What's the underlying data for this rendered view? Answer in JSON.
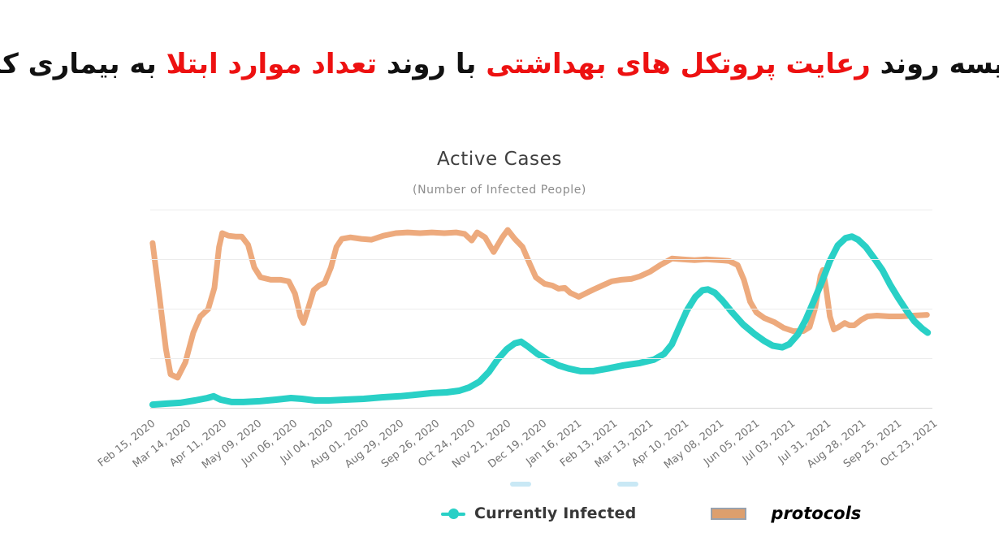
{
  "main_title": {
    "segments": [
      {
        "text": "مقایسه روند ",
        "color": "#111111"
      },
      {
        "text": "رعایت پروتکل های بهداشتی ",
        "color": "#ed1111"
      },
      {
        "text": "با روند ",
        "color": "#111111"
      },
      {
        "text": "تعداد موارد ابتلا ",
        "color": "#ed1111"
      },
      {
        "text": "به بیماری کرونا",
        "color": "#111111"
      }
    ]
  },
  "chart_data": {
    "type": "line",
    "title": "Active Cases",
    "subtitle": "(Number of Infected People)",
    "x_tick_labels": [
      "Feb 15, 2020",
      "Mar 14, 2020",
      "Apr 11, 2020",
      "May 09, 2020",
      "Jun 06, 2020",
      "Jul 04, 2020",
      "Aug 01, 2020",
      "Aug 29, 2020",
      "Sep 26, 2020",
      "Oct 24, 2020",
      "Nov 21, 2020",
      "Dec 19, 2020",
      "Jan 16, 2021",
      "Feb 13, 2021",
      "Mar 13, 2021",
      "Apr 10, 2021",
      "May 08, 2021",
      "Jun 05, 2021",
      "Jul 03, 2021",
      "Jul 31, 2021",
      "Aug 28, 2021",
      "Sep 25, 2021",
      "Oct 23, 2021"
    ],
    "y_axis": {
      "labels_visible": false,
      "note": "no numeric y labels shown; values below are relative 0-100 of plot height",
      "gridline_count": 5
    },
    "grid": {
      "horizontal": true,
      "vertical": false,
      "gridline_color": "#ececec",
      "axis_line_color": "#d6d6d6"
    },
    "legend_position": "bottom",
    "legend": [
      {
        "label": "Currently Infected",
        "marker": "line-with-dot",
        "color": "#29d0c6",
        "label_color": "#383838"
      },
      {
        "label": "protocols",
        "marker": "bordered-rect",
        "color": "#dd9f6d",
        "border_color": "#99a1ac",
        "label_color": "#000000"
      }
    ],
    "series": [
      {
        "name": "protocols",
        "color": "#edaa7d",
        "stroke_width": 7,
        "points": [
          [
            0.3,
            83.1
          ],
          [
            1.1,
            58.4
          ],
          [
            2.0,
            29.6
          ],
          [
            2.6,
            16.9
          ],
          [
            3.5,
            15.2
          ],
          [
            4.5,
            23.0
          ],
          [
            5.5,
            37.9
          ],
          [
            6.4,
            46.1
          ],
          [
            7.4,
            49.8
          ],
          [
            8.2,
            60.5
          ],
          [
            8.8,
            81.1
          ],
          [
            9.2,
            88.1
          ],
          [
            10.0,
            86.8
          ],
          [
            10.9,
            86.4
          ],
          [
            11.7,
            86.4
          ],
          [
            12.5,
            82.3
          ],
          [
            13.3,
            70.8
          ],
          [
            14.1,
            65.8
          ],
          [
            15.4,
            64.6
          ],
          [
            16.7,
            64.6
          ],
          [
            17.7,
            63.8
          ],
          [
            18.5,
            57.6
          ],
          [
            19.2,
            46.1
          ],
          [
            19.6,
            42.8
          ],
          [
            20.2,
            50.2
          ],
          [
            20.9,
            59.3
          ],
          [
            21.6,
            61.7
          ],
          [
            22.3,
            63.0
          ],
          [
            23.1,
            70.8
          ],
          [
            23.8,
            81.1
          ],
          [
            24.5,
            85.2
          ],
          [
            25.6,
            86.0
          ],
          [
            27.0,
            85.2
          ],
          [
            28.3,
            84.8
          ],
          [
            29.8,
            86.8
          ],
          [
            31.4,
            88.1
          ],
          [
            32.9,
            88.5
          ],
          [
            34.5,
            88.1
          ],
          [
            36.0,
            88.5
          ],
          [
            37.6,
            88.1
          ],
          [
            39.1,
            88.5
          ],
          [
            40.2,
            87.7
          ],
          [
            41.1,
            84.4
          ],
          [
            41.8,
            88.5
          ],
          [
            42.8,
            86.0
          ],
          [
            43.9,
            78.6
          ],
          [
            45.0,
            86.0
          ],
          [
            45.7,
            89.7
          ],
          [
            46.6,
            85.2
          ],
          [
            47.6,
            81.1
          ],
          [
            48.5,
            72.8
          ],
          [
            49.3,
            65.8
          ],
          [
            50.4,
            62.6
          ],
          [
            51.4,
            61.7
          ],
          [
            52.2,
            60.1
          ],
          [
            53.0,
            60.5
          ],
          [
            53.7,
            58.0
          ],
          [
            54.8,
            56.0
          ],
          [
            55.8,
            58.0
          ],
          [
            56.7,
            59.7
          ],
          [
            57.8,
            61.7
          ],
          [
            59.0,
            63.8
          ],
          [
            60.2,
            64.6
          ],
          [
            61.5,
            65.0
          ],
          [
            62.6,
            66.3
          ],
          [
            63.9,
            68.7
          ],
          [
            65.2,
            72.0
          ],
          [
            66.7,
            75.3
          ],
          [
            68.0,
            74.9
          ],
          [
            69.6,
            74.5
          ],
          [
            71.1,
            74.9
          ],
          [
            72.7,
            74.5
          ],
          [
            74.0,
            74.1
          ],
          [
            75.1,
            72.0
          ],
          [
            75.9,
            64.6
          ],
          [
            76.7,
            53.5
          ],
          [
            77.5,
            48.1
          ],
          [
            78.5,
            45.3
          ],
          [
            79.8,
            43.2
          ],
          [
            81.0,
            40.3
          ],
          [
            82.2,
            38.7
          ],
          [
            83.5,
            38.7
          ],
          [
            84.3,
            40.7
          ],
          [
            85.0,
            50.2
          ],
          [
            85.7,
            66.7
          ],
          [
            86.0,
            69.5
          ],
          [
            86.4,
            60.5
          ],
          [
            86.9,
            46.1
          ],
          [
            87.4,
            39.5
          ],
          [
            88.0,
            40.7
          ],
          [
            88.8,
            42.8
          ],
          [
            89.4,
            41.6
          ],
          [
            90.0,
            41.6
          ],
          [
            90.9,
            44.4
          ],
          [
            91.7,
            46.1
          ],
          [
            92.9,
            46.5
          ],
          [
            94.5,
            46.1
          ],
          [
            96.0,
            46.1
          ],
          [
            97.6,
            46.5
          ],
          [
            99.3,
            46.9
          ]
        ]
      },
      {
        "name": "Currently Infected",
        "color": "#29d0c6",
        "stroke_width": 8,
        "points": [
          [
            0.3,
            1.6
          ],
          [
            2.1,
            2.1
          ],
          [
            3.8,
            2.5
          ],
          [
            5.7,
            3.7
          ],
          [
            7.3,
            4.9
          ],
          [
            8.1,
            5.8
          ],
          [
            9.0,
            4.1
          ],
          [
            10.4,
            2.9
          ],
          [
            11.9,
            2.9
          ],
          [
            14.0,
            3.3
          ],
          [
            16.1,
            4.1
          ],
          [
            18.0,
            4.9
          ],
          [
            19.4,
            4.5
          ],
          [
            21.1,
            3.7
          ],
          [
            22.8,
            3.7
          ],
          [
            24.9,
            4.1
          ],
          [
            27.3,
            4.5
          ],
          [
            29.6,
            5.3
          ],
          [
            31.9,
            5.8
          ],
          [
            34.0,
            6.6
          ],
          [
            36.0,
            7.4
          ],
          [
            37.9,
            7.8
          ],
          [
            39.5,
            8.6
          ],
          [
            40.8,
            10.3
          ],
          [
            42.1,
            13.2
          ],
          [
            43.3,
            18.1
          ],
          [
            44.4,
            24.3
          ],
          [
            45.6,
            29.6
          ],
          [
            46.6,
            32.5
          ],
          [
            47.4,
            33.3
          ],
          [
            48.3,
            30.9
          ],
          [
            49.5,
            27.2
          ],
          [
            50.9,
            23.9
          ],
          [
            52.2,
            21.4
          ],
          [
            53.5,
            19.8
          ],
          [
            55.0,
            18.5
          ],
          [
            56.6,
            18.5
          ],
          [
            58.5,
            19.8
          ],
          [
            60.5,
            21.4
          ],
          [
            62.6,
            22.6
          ],
          [
            64.4,
            24.3
          ],
          [
            65.7,
            27.2
          ],
          [
            66.7,
            32.1
          ],
          [
            67.6,
            40.3
          ],
          [
            68.6,
            49.0
          ],
          [
            69.7,
            56.0
          ],
          [
            70.6,
            59.3
          ],
          [
            71.3,
            59.7
          ],
          [
            72.2,
            58.0
          ],
          [
            73.2,
            53.9
          ],
          [
            74.4,
            48.1
          ],
          [
            75.8,
            42.0
          ],
          [
            77.2,
            37.4
          ],
          [
            78.5,
            33.7
          ],
          [
            79.6,
            31.3
          ],
          [
            80.8,
            30.5
          ],
          [
            81.7,
            32.1
          ],
          [
            82.8,
            37.0
          ],
          [
            83.8,
            44.4
          ],
          [
            84.8,
            53.5
          ],
          [
            85.9,
            63.8
          ],
          [
            86.9,
            74.1
          ],
          [
            87.9,
            81.9
          ],
          [
            88.9,
            85.6
          ],
          [
            89.7,
            86.4
          ],
          [
            90.5,
            84.8
          ],
          [
            91.5,
            81.1
          ],
          [
            92.5,
            75.7
          ],
          [
            93.6,
            69.5
          ],
          [
            94.6,
            62.1
          ],
          [
            95.6,
            55.6
          ],
          [
            96.7,
            49.0
          ],
          [
            97.7,
            43.6
          ],
          [
            98.7,
            39.9
          ],
          [
            99.4,
            37.9
          ]
        ]
      }
    ]
  }
}
